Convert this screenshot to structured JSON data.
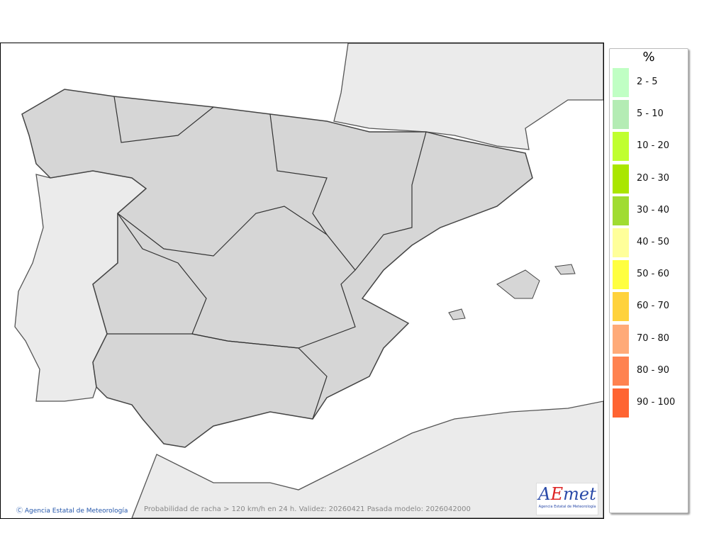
{
  "map": {
    "credit": "Agencia Estatal de Meteorología",
    "caption": "Probabilidad de racha > 120 km/h en 24 h. Validez: 20260421 Pasada modelo: 2026042000",
    "logo": {
      "brand": "AEmet",
      "subtitle": "Agencia Estatal de Meteorología"
    },
    "colors": {
      "sea": "#ffffff",
      "land_other": "#ebebeb",
      "spain": "#d6d6d6",
      "border": "#333333"
    }
  },
  "legend": {
    "unit": "%",
    "items": [
      {
        "label": "2 - 5",
        "color": "#c0ffc4"
      },
      {
        "label": "5 - 10",
        "color": "#b4ecb4"
      },
      {
        "label": "10 - 20",
        "color": "#c0ff30"
      },
      {
        "label": "20 - 30",
        "color": "#aae600"
      },
      {
        "label": "30 - 40",
        "color": "#a0dc32"
      },
      {
        "label": "40 - 50",
        "color": "#ffff9a"
      },
      {
        "label": "50 - 60",
        "color": "#ffff40"
      },
      {
        "label": "60 - 70",
        "color": "#ffd23c"
      },
      {
        "label": "70 - 80",
        "color": "#ffaa78"
      },
      {
        "label": "80 - 90",
        "color": "#ff8250"
      },
      {
        "label": "90 - 100",
        "color": "#ff6432"
      }
    ]
  }
}
